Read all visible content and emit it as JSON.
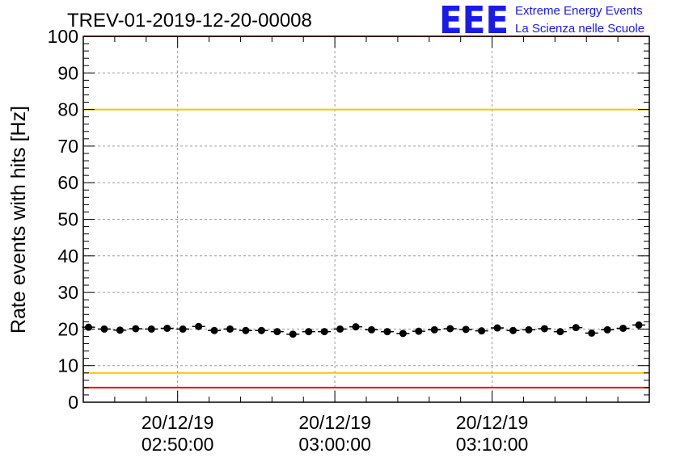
{
  "chart_data": {
    "type": "scatter",
    "title": "TREV-01-2019-12-20-00008",
    "ylabel": "Rate events with hits [Hz]",
    "xlabel": "",
    "ylim": [
      0,
      100
    ],
    "yticks": [
      0,
      10,
      20,
      30,
      40,
      50,
      60,
      70,
      80,
      90,
      100
    ],
    "xlim": [
      "2019-12-20 02:44:00",
      "2019-12-20 03:20:00"
    ],
    "xticks": [
      {
        "date": "20/12/19",
        "time": "02:50:00",
        "value": "2019-12-20 02:50:00"
      },
      {
        "date": "20/12/19",
        "time": "03:00:00",
        "value": "2019-12-20 03:00:00"
      },
      {
        "date": "20/12/19",
        "time": "03:10:00",
        "value": "2019-12-20 03:10:00"
      }
    ],
    "grid": true,
    "reference_lines": [
      {
        "y": 100,
        "color": "#ee1111"
      },
      {
        "y": 80,
        "color": "#f0c800"
      },
      {
        "y": 8,
        "color": "#f0c800"
      },
      {
        "y": 4,
        "color": "#ee1111"
      }
    ],
    "series": [
      {
        "color": "#000000",
        "x": [
          "2019-12-20 02:44:20",
          "2019-12-20 02:45:20",
          "2019-12-20 02:46:20",
          "2019-12-20 02:47:20",
          "2019-12-20 02:48:20",
          "2019-12-20 02:49:20",
          "2019-12-20 02:50:20",
          "2019-12-20 02:51:20",
          "2019-12-20 02:52:20",
          "2019-12-20 02:53:20",
          "2019-12-20 02:54:20",
          "2019-12-20 02:55:20",
          "2019-12-20 02:56:20",
          "2019-12-20 02:57:20",
          "2019-12-20 02:58:20",
          "2019-12-20 02:59:20",
          "2019-12-20 03:00:20",
          "2019-12-20 03:01:20",
          "2019-12-20 03:02:20",
          "2019-12-20 03:03:20",
          "2019-12-20 03:04:20",
          "2019-12-20 03:05:20",
          "2019-12-20 03:06:20",
          "2019-12-20 03:07:20",
          "2019-12-20 03:08:20",
          "2019-12-20 03:09:20",
          "2019-12-20 03:10:20",
          "2019-12-20 03:11:20",
          "2019-12-20 03:12:20",
          "2019-12-20 03:13:20",
          "2019-12-20 03:14:20",
          "2019-12-20 03:15:20",
          "2019-12-20 03:16:20",
          "2019-12-20 03:17:20",
          "2019-12-20 03:18:20",
          "2019-12-20 03:19:20"
        ],
        "y": [
          20.5,
          20.0,
          19.7,
          20.1,
          20.0,
          20.2,
          20.0,
          20.7,
          19.6,
          20.0,
          19.6,
          19.6,
          19.3,
          18.6,
          19.3,
          19.3,
          20.0,
          20.6,
          19.8,
          19.3,
          18.8,
          19.4,
          19.8,
          20.1,
          19.9,
          19.5,
          20.3,
          19.6,
          19.8,
          20.1,
          19.3,
          20.4,
          18.9,
          19.8,
          20.2,
          21.1
        ]
      }
    ]
  },
  "logo": {
    "mark": "EEE",
    "line1": "Extreme Energy Events",
    "line2": "La Scienza nelle Scuole"
  }
}
